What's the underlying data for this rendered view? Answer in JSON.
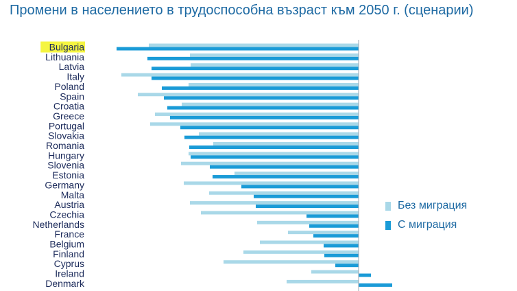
{
  "title": "Промени в населението в трудоспособна възраст към 2050 г. (сценарии)",
  "colors": {
    "no_migration": "#a9d8e8",
    "with_migration": "#1a9bd7",
    "highlight": "#f5f542",
    "label": "#1b2a5a",
    "title": "#1e6aa3"
  },
  "chart_data": {
    "type": "bar",
    "orientation": "horizontal",
    "highlight_category": "Bulgaria",
    "xlim": [
      -40,
      5
    ],
    "grid": false,
    "legend_position": "right",
    "categories": [
      "Bulgaria",
      "Lithuania",
      "Latvia",
      "Italy",
      "Poland",
      "Spain",
      "Croatia",
      "Greece",
      "Portugal",
      "Slovakia",
      "Romania",
      "Hungary",
      "Slovenia",
      "Estonia",
      "Germany",
      "Malta",
      "Austria",
      "Czechia",
      "Netherlands",
      "France",
      "Belgium",
      "Finland",
      "Cyprus",
      "Ireland",
      "Denmark"
    ],
    "series": [
      {
        "name": "Без миграция",
        "values": [
          -30.6,
          -24.6,
          -24.5,
          -34.6,
          -24.8,
          -32.2,
          -25.8,
          -29.7,
          -30.4,
          -23.3,
          -21.2,
          -24.8,
          -25.9,
          -18.1,
          -25.5,
          -21.8,
          -24.6,
          -23.0,
          -14.8,
          -10.3,
          -14.4,
          -16.8,
          -19.7,
          -6.9,
          -10.5
        ]
      },
      {
        "name": "С миграция",
        "values": [
          -35.3,
          -30.8,
          -30.2,
          -30.2,
          -28.7,
          -28.4,
          -27.9,
          -27.5,
          -26.0,
          -25.4,
          -24.7,
          -24.5,
          -21.7,
          -21.3,
          -17.1,
          -15.3,
          -15.0,
          -7.6,
          -7.2,
          -6.6,
          -5.1,
          -5.0,
          -3.4,
          1.8,
          4.9
        ]
      }
    ]
  }
}
